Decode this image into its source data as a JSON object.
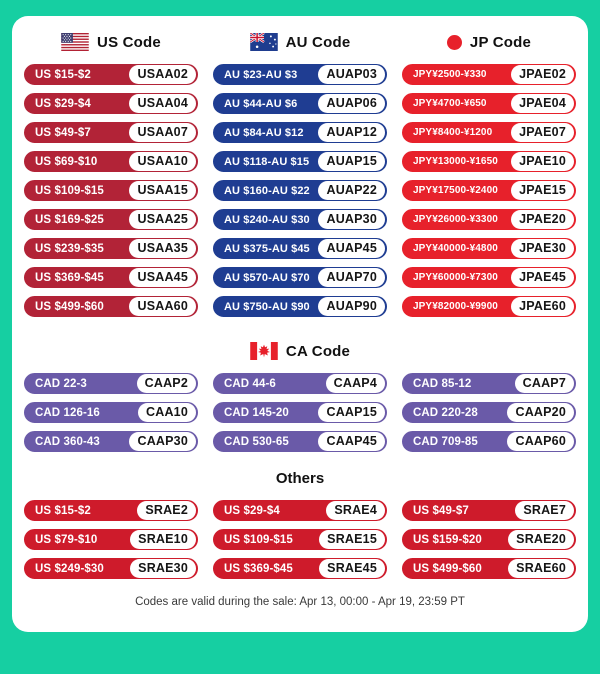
{
  "page": {
    "background_color": "#16CFA2",
    "card_color": "#FFFFFF"
  },
  "sections": {
    "us": {
      "label": "US Code",
      "icon": "us-flag-icon",
      "color": "#B22337",
      "coupons": [
        {
          "amount": "US $15-$2",
          "code": "USAA02"
        },
        {
          "amount": "US $29-$4",
          "code": "USAA04"
        },
        {
          "amount": "US $49-$7",
          "code": "USAA07"
        },
        {
          "amount": "US $69-$10",
          "code": "USAA10"
        },
        {
          "amount": "US $109-$15",
          "code": "USAA15"
        },
        {
          "amount": "US $169-$25",
          "code": "USAA25"
        },
        {
          "amount": "US $239-$35",
          "code": "USAA35"
        },
        {
          "amount": "US $369-$45",
          "code": "USAA45"
        },
        {
          "amount": "US $499-$60",
          "code": "USAA60"
        }
      ]
    },
    "au": {
      "label": "AU Code",
      "icon": "au-flag-icon",
      "color": "#1F3D92",
      "coupons": [
        {
          "amount": "AU $23-AU $3",
          "code": "AUAP03"
        },
        {
          "amount": "AU $44-AU $6",
          "code": "AUAP06"
        },
        {
          "amount": "AU $84-AU $12",
          "code": "AUAP12"
        },
        {
          "amount": "AU $118-AU $15",
          "code": "AUAP15"
        },
        {
          "amount": "AU $160-AU $22",
          "code": "AUAP22"
        },
        {
          "amount": "AU $240-AU $30",
          "code": "AUAP30"
        },
        {
          "amount": "AU $375-AU $45",
          "code": "AUAP45"
        },
        {
          "amount": "AU $570-AU $70",
          "code": "AUAP70"
        },
        {
          "amount": "AU $750-AU $90",
          "code": "AUAP90"
        }
      ]
    },
    "jp": {
      "label": "JP Code",
      "icon": "jp-flag-icon",
      "color": "#E7212B",
      "coupons": [
        {
          "amount": "JPY¥2500-¥330",
          "code": "JPAE02"
        },
        {
          "amount": "JPY¥4700-¥650",
          "code": "JPAE04"
        },
        {
          "amount": "JPY¥8400-¥1200",
          "code": "JPAE07"
        },
        {
          "amount": "JPY¥13000-¥1650",
          "code": "JPAE10"
        },
        {
          "amount": "JPY¥17500-¥2400",
          "code": "JPAE15"
        },
        {
          "amount": "JPY¥26000-¥3300",
          "code": "JPAE20"
        },
        {
          "amount": "JPY¥40000-¥4800",
          "code": "JPAE30"
        },
        {
          "amount": "JPY¥60000-¥7300",
          "code": "JPAE45"
        },
        {
          "amount": "JPY¥82000-¥9900",
          "code": "JPAE60"
        }
      ]
    },
    "ca": {
      "label": "CA Code",
      "icon": "ca-flag-icon",
      "color": "#6A5AA8",
      "coupons": [
        {
          "amount": "CAD 22-3",
          "code": "CAAP2"
        },
        {
          "amount": "CAD 44-6",
          "code": "CAAP4"
        },
        {
          "amount": "CAD 85-12",
          "code": "CAAP7"
        },
        {
          "amount": "CAD 126-16",
          "code": "CAA10"
        },
        {
          "amount": "CAD 145-20",
          "code": "CAAP15"
        },
        {
          "amount": "CAD 220-28",
          "code": "CAAP20"
        },
        {
          "amount": "CAD 360-43",
          "code": "CAAP30"
        },
        {
          "amount": "CAD 530-65",
          "code": "CAAP45"
        },
        {
          "amount": "CAD 709-85",
          "code": "CAAP60"
        }
      ]
    },
    "others": {
      "label": "Others",
      "color": "#CE1B2B",
      "coupons": [
        {
          "amount": "US $15-$2",
          "code": "SRAE2"
        },
        {
          "amount": "US $29-$4",
          "code": "SRAE4"
        },
        {
          "amount": "US $49-$7",
          "code": "SRAE7"
        },
        {
          "amount": "US $79-$10",
          "code": "SRAE10"
        },
        {
          "amount": "US $109-$15",
          "code": "SRAE15"
        },
        {
          "amount": "US $159-$20",
          "code": "SRAE20"
        },
        {
          "amount": "US $249-$30",
          "code": "SRAE30"
        },
        {
          "amount": "US $369-$45",
          "code": "SRAE45"
        },
        {
          "amount": "US $499-$60",
          "code": "SRAE60"
        }
      ]
    }
  },
  "footer": {
    "note": "Codes are valid during the sale: Apr 13, 00:00 - Apr 19, 23:59 PT"
  }
}
